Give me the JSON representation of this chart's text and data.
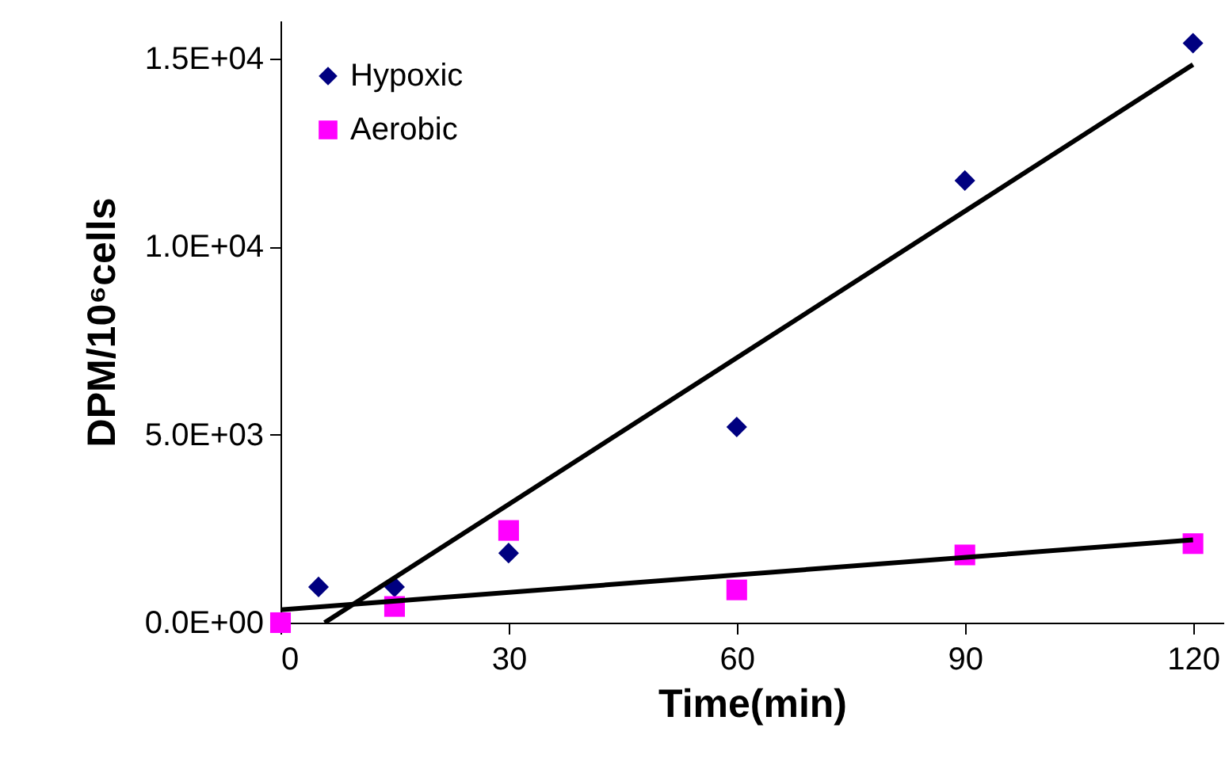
{
  "chart_data": {
    "type": "scatter",
    "xlabel": "Time(min)",
    "ylabel": "DPM/10⁶cells",
    "xlim": [
      0,
      124
    ],
    "xticks": [
      0,
      30,
      60,
      90,
      120
    ],
    "ylim": [
      0,
      16000
    ],
    "yticks": [
      {
        "value": 0,
        "label": "0.0E+00"
      },
      {
        "value": 5000,
        "label": "5.0E+03"
      },
      {
        "value": 10000,
        "label": "1.0E+04"
      },
      {
        "value": 15000,
        "label": "1.5E+04"
      }
    ],
    "grid": false,
    "legend": "top left",
    "series": [
      {
        "name": "Hypoxic",
        "color": "#000080",
        "marker": "diamond",
        "x": [
          5,
          15,
          30,
          60,
          90,
          120
        ],
        "values": [
          950,
          950,
          1850,
          5200,
          11750,
          15400
        ]
      },
      {
        "name": "Aerobic",
        "color": "#ff00ff",
        "marker": "square",
        "x": [
          0,
          15,
          30,
          60,
          90,
          120
        ],
        "values": [
          0,
          430,
          2450,
          870,
          1800,
          2100
        ]
      },
      {
        "type": "line",
        "color": "#000000",
        "x": [
          5.8,
          120
        ],
        "values": [
          0,
          14830
        ]
      },
      {
        "type": "line",
        "color": "#000000",
        "x": [
          0,
          120
        ],
        "values": [
          340,
          2200
        ]
      }
    ]
  }
}
